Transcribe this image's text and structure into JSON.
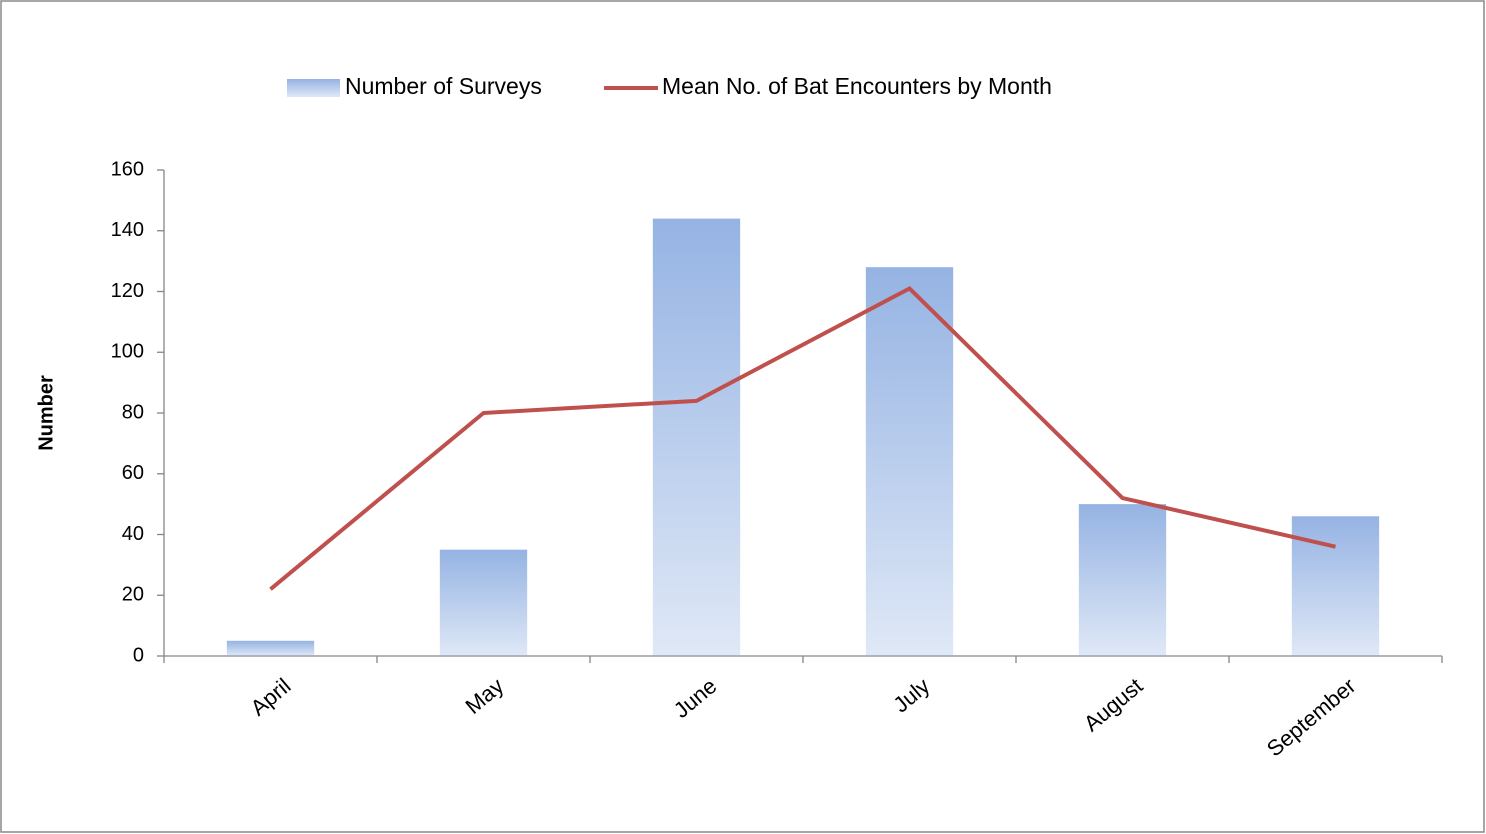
{
  "chart_data": {
    "type": "bar",
    "y_label": "Number",
    "categories": [
      "April",
      "May",
      "June",
      "July",
      "August",
      "September"
    ],
    "series": [
      {
        "name": "Number of Surveys",
        "type": "bar",
        "color": "#95b3e3",
        "values": [
          5,
          35,
          144,
          128,
          50,
          46
        ]
      },
      {
        "name": "Mean No. of Bat Encounters by Month",
        "type": "line",
        "color": "#c0504d",
        "values": [
          22,
          80,
          84,
          121,
          52,
          36
        ]
      }
    ],
    "ylim": [
      0,
      160
    ],
    "yticks": [
      0,
      20,
      40,
      60,
      80,
      100,
      120,
      140,
      160
    ],
    "grid": false,
    "legend": "top"
  }
}
